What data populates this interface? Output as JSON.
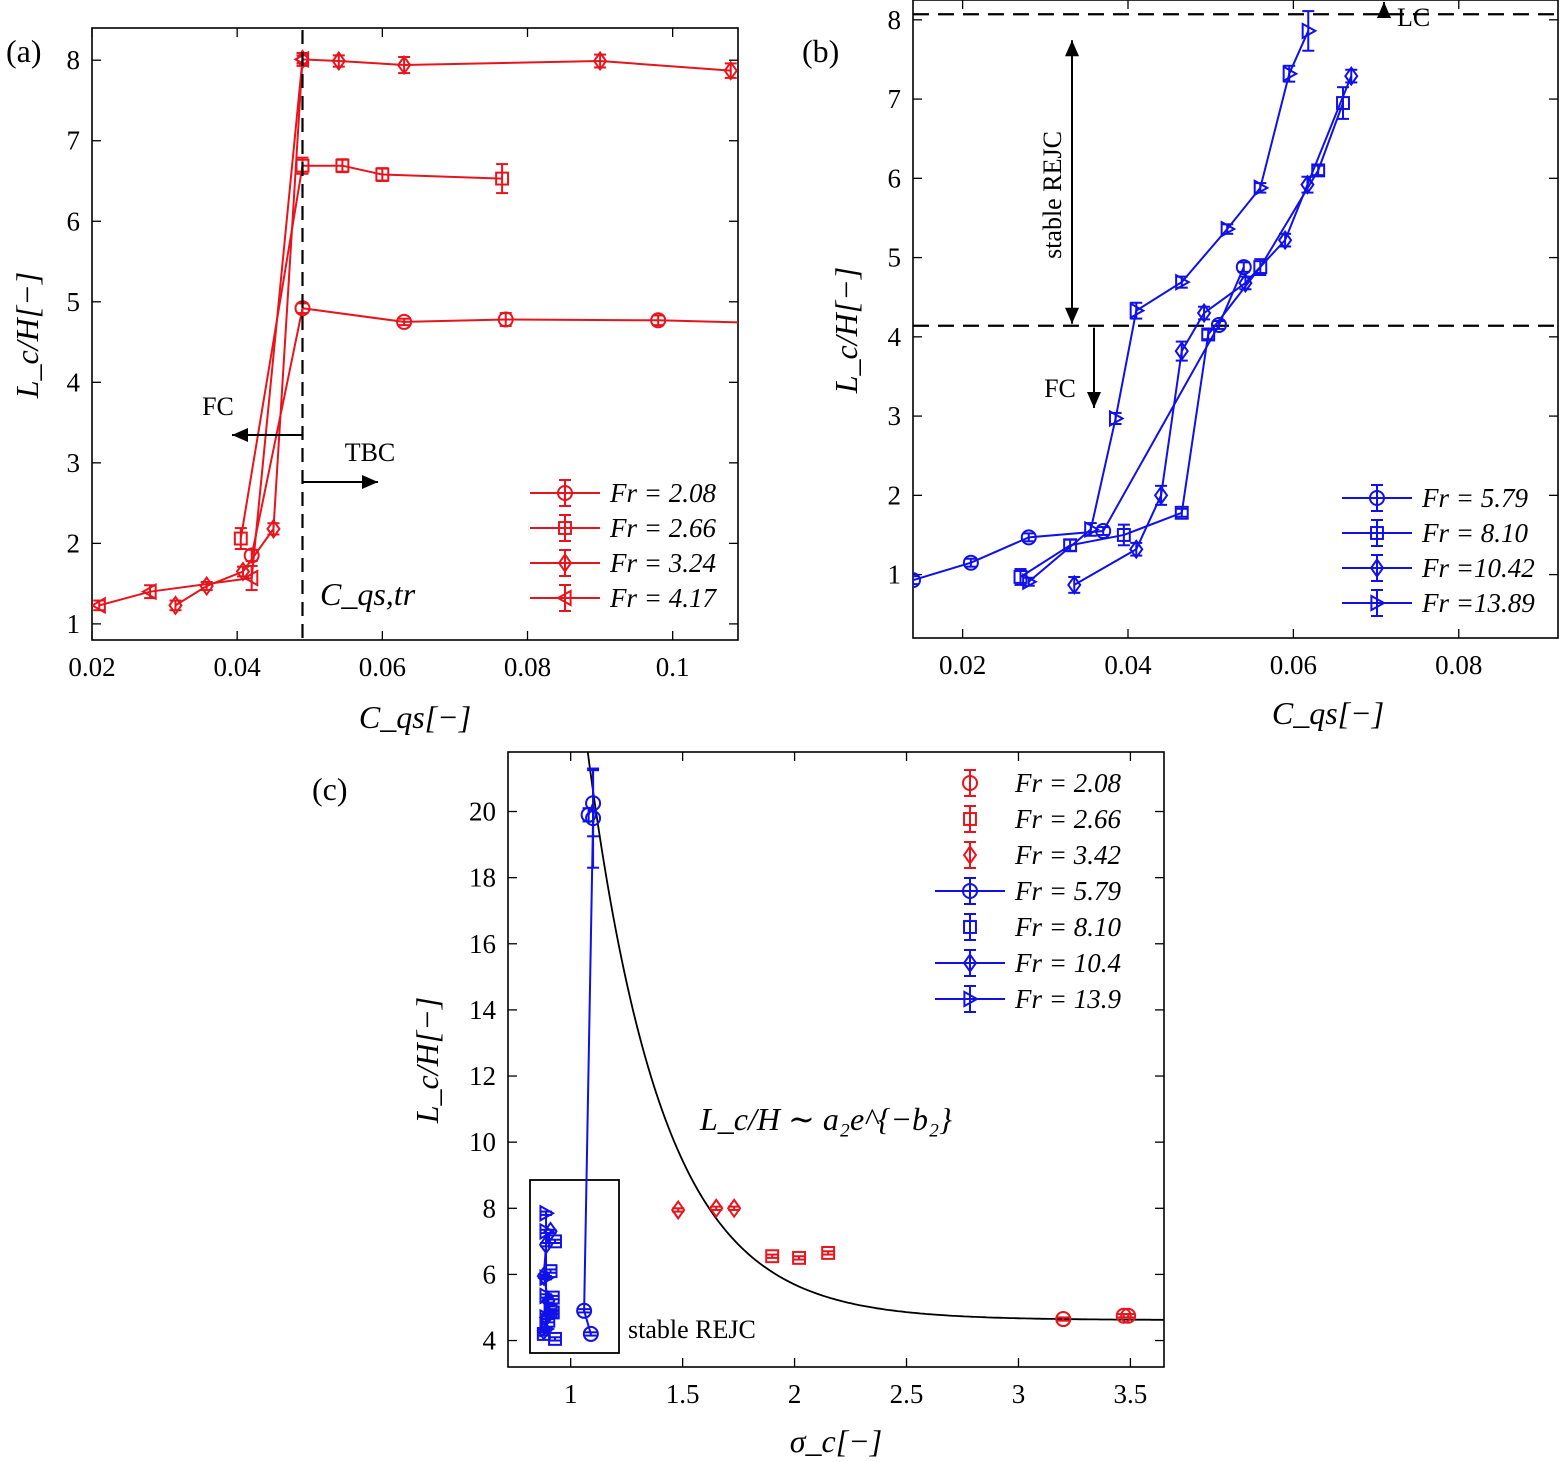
{
  "figure": "three-panel",
  "chart_data": [
    {
      "panel": "a",
      "panel_label": "(a)",
      "type": "line",
      "xlabel": "C_qs[−]",
      "ylabel": "L_c/H[−]",
      "xlim": [
        0.02,
        0.109
      ],
      "ylim": [
        0.8,
        8.4
      ],
      "xticks": [
        0.02,
        0.04,
        0.06,
        0.08,
        0.1
      ],
      "xtick_labels": [
        "0.02",
        "0.04",
        "0.06",
        "0.08",
        "0.1"
      ],
      "yticks": [
        1,
        2,
        3,
        4,
        5,
        6,
        7,
        8
      ],
      "ytick_labels": [
        "1",
        "2",
        "3",
        "4",
        "5",
        "6",
        "7",
        "8"
      ],
      "color": "#e8141c",
      "legend_position": "lower-right",
      "annotations": {
        "fc": "FC",
        "tbc": "TBC",
        "cqs_tr": "C_qs,tr",
        "threshold_x": 0.049
      },
      "series": [
        {
          "name": "Fr = 2.08",
          "marker": "circle",
          "points": [
            [
              0.042,
              1.85,
              0.07
            ],
            [
              0.049,
              4.92,
              0.06
            ],
            [
              0.063,
              4.75,
              0.04
            ],
            [
              0.077,
              4.78,
              0.08
            ],
            [
              0.098,
              4.77,
              0.06
            ],
            [
              0.111,
              4.74,
              0.04
            ]
          ]
        },
        {
          "name": "Fr = 2.66",
          "marker": "square",
          "points": [
            [
              0.0405,
              2.06,
              0.13
            ],
            [
              0.049,
              6.69,
              0.1
            ],
            [
              0.0545,
              6.69,
              0.08
            ],
            [
              0.06,
              6.58,
              0.08
            ],
            [
              0.0765,
              6.53,
              0.18
            ]
          ]
        },
        {
          "name": "Fr = 3.24",
          "marker": "diamond",
          "points": [
            [
              0.0315,
              1.23,
              0.06
            ],
            [
              0.0358,
              1.47,
              0.05
            ],
            [
              0.0408,
              1.65,
              0.06
            ],
            [
              0.045,
              2.18,
              0.07
            ],
            [
              0.049,
              8.01,
              0.08
            ],
            [
              0.054,
              7.99,
              0.07
            ],
            [
              0.063,
              7.94,
              0.1
            ],
            [
              0.09,
              7.99,
              0.08
            ],
            [
              0.108,
              7.87,
              0.09
            ]
          ]
        },
        {
          "name": "Fr = 4.17",
          "marker": "triangle-left",
          "points": [
            [
              0.021,
              1.23,
              0.06
            ],
            [
              0.028,
              1.4,
              0.08
            ],
            [
              0.042,
              1.57,
              0.15
            ],
            [
              0.049,
              8.01,
              0.05
            ]
          ]
        }
      ]
    },
    {
      "panel": "b",
      "panel_label": "(b)",
      "type": "line",
      "xlabel": "C_qs[−]",
      "ylabel": "L_c/H[−]",
      "xlim": [
        0.014,
        0.092
      ],
      "ylim": [
        0.2,
        8.25
      ],
      "xticks": [
        0.02,
        0.04,
        0.06,
        0.08
      ],
      "xtick_labels": [
        "0.02",
        "0.04",
        "0.06",
        "0.08"
      ],
      "yticks": [
        1,
        2,
        3,
        4,
        5,
        6,
        7,
        8
      ],
      "ytick_labels": [
        "1",
        "2",
        "3",
        "4",
        "5",
        "6",
        "7",
        "8"
      ],
      "color": "#1010e8",
      "legend_position": "lower-right",
      "annotations": {
        "lc": "LC",
        "fc": "FC",
        "stable": "stable REJC",
        "upper_line_y": 8.07,
        "lower_line_y": 4.14
      },
      "series": [
        {
          "name": "Fr = 5.79",
          "marker": "circle",
          "points": [
            [
              0.014,
              0.93,
              0.05
            ],
            [
              0.021,
              1.15,
              0.05
            ],
            [
              0.028,
              1.47,
              0.05
            ],
            [
              0.037,
              1.55,
              0.05
            ],
            [
              0.051,
              4.15,
              0.05
            ],
            [
              0.054,
              4.88,
              0.06
            ]
          ]
        },
        {
          "name": "Fr = 8.10",
          "marker": "square",
          "points": [
            [
              0.027,
              0.97,
              0.1
            ],
            [
              0.033,
              1.37,
              0.07
            ],
            [
              0.0395,
              1.5,
              0.13
            ],
            [
              0.0465,
              1.78,
              0.05
            ],
            [
              0.0497,
              4.03,
              0.06
            ],
            [
              0.056,
              4.88,
              0.1
            ],
            [
              0.063,
              6.1,
              0.06
            ],
            [
              0.066,
              6.95,
              0.2
            ]
          ]
        },
        {
          "name": "Fr =10.42",
          "marker": "diamond",
          "points": [
            [
              0.0335,
              0.87,
              0.1
            ],
            [
              0.041,
              1.32,
              0.08
            ],
            [
              0.044,
              2.0,
              0.12
            ],
            [
              0.0465,
              3.82,
              0.12
            ],
            [
              0.0492,
              4.3,
              0.08
            ],
            [
              0.0542,
              4.68,
              0.08
            ],
            [
              0.059,
              5.22,
              0.08
            ],
            [
              0.0617,
              5.92,
              0.1
            ],
            [
              0.067,
              7.29,
              0.08
            ]
          ]
        },
        {
          "name": "Fr =13.89",
          "marker": "triangle-right",
          "points": [
            [
              0.028,
              0.91,
              0.05
            ],
            [
              0.0355,
              1.57,
              0.08
            ],
            [
              0.0385,
              2.97,
              0.07
            ],
            [
              0.041,
              4.33,
              0.1
            ],
            [
              0.0465,
              4.69,
              0.07
            ],
            [
              0.052,
              5.36,
              0.06
            ],
            [
              0.056,
              5.88,
              0.06
            ],
            [
              0.0595,
              7.32,
              0.1
            ],
            [
              0.0618,
              7.86,
              0.25
            ]
          ]
        }
      ]
    },
    {
      "panel": "c",
      "panel_label": "(c)",
      "type": "scatter",
      "xlabel": "σ_c[−]",
      "ylabel": "L_c/H[−]",
      "xlim": [
        0.72,
        3.65
      ],
      "ylim": [
        3.2,
        21.8
      ],
      "xticks": [
        1,
        1.5,
        2,
        2.5,
        3,
        3.5
      ],
      "xtick_labels": [
        "1",
        "1.5",
        "2",
        "2.5",
        "3",
        "3.5"
      ],
      "yticks": [
        4,
        6,
        8,
        10,
        12,
        14,
        16,
        18,
        20
      ],
      "ytick_labels": [
        "4",
        "6",
        "8",
        "10",
        "12",
        "14",
        "16",
        "18",
        "20"
      ],
      "legend_position": "top-right",
      "fit_label": "L_c/H ∼ a₂e^{−b₂}",
      "fit_curve": "exponential decay",
      "stable_label": "stable REJC",
      "series": [
        {
          "name": "Fr = 2.08",
          "marker": "circle",
          "color": "#e8141c",
          "line": false,
          "points": [
            [
              3.2,
              4.65,
              0.05
            ],
            [
              3.47,
              4.75,
              0.05
            ],
            [
              3.49,
              4.75,
              0.05
            ]
          ]
        },
        {
          "name": "Fr = 2.66",
          "marker": "square",
          "color": "#e8141c",
          "line": false,
          "points": [
            [
              1.9,
              6.55,
              0.05
            ],
            [
              2.02,
              6.5,
              0.05
            ],
            [
              2.15,
              6.65,
              0.05
            ]
          ]
        },
        {
          "name": "Fr = 3.42",
          "marker": "diamond",
          "color": "#e8141c",
          "line": false,
          "points": [
            [
              1.48,
              7.95,
              0.05
            ],
            [
              1.65,
              8.0,
              0.05
            ],
            [
              1.73,
              8.0,
              0.05
            ]
          ]
        },
        {
          "name": "Fr = 5.79",
          "marker": "circle",
          "color": "#1010e8",
          "line": true,
          "points": [
            [
              1.08,
              19.9,
              0.2
            ],
            [
              1.1,
              20.25,
              1.0
            ],
            [
              1.1,
              19.8,
              1.5
            ],
            [
              1.06,
              4.9,
              0.05
            ],
            [
              1.09,
              4.2,
              0.05
            ]
          ]
        },
        {
          "name": "Fr = 8.10",
          "marker": "square",
          "color": "#1010e8",
          "line": false,
          "points": [
            [
              0.88,
              4.2,
              0.05
            ],
            [
              0.9,
              4.6,
              0.05
            ],
            [
              0.91,
              4.9,
              0.05
            ],
            [
              0.92,
              5.3,
              0.05
            ],
            [
              0.91,
              6.1,
              0.05
            ],
            [
              0.93,
              7.0,
              0.05
            ],
            [
              0.93,
              4.05,
              0.05
            ],
            [
              0.92,
              4.85,
              0.05
            ]
          ]
        },
        {
          "name": "Fr = 10.4",
          "marker": "diamond",
          "color": "#1010e8",
          "line": true,
          "points": [
            [
              0.88,
              4.3,
              0.05
            ],
            [
              0.89,
              4.7,
              0.05
            ],
            [
              0.9,
              5.2,
              0.05
            ],
            [
              0.88,
              5.95,
              0.05
            ],
            [
              0.89,
              6.9,
              0.05
            ],
            [
              0.91,
              7.3,
              0.05
            ]
          ]
        },
        {
          "name": "Fr = 13.9",
          "marker": "triangle-right",
          "color": "#1010e8",
          "line": true,
          "points": [
            [
              0.89,
              4.35,
              0.05
            ],
            [
              0.89,
              4.7,
              0.05
            ],
            [
              0.89,
              5.35,
              0.05
            ],
            [
              0.89,
              5.9,
              0.05
            ],
            [
              0.89,
              7.3,
              0.05
            ],
            [
              0.89,
              7.85,
              0.05
            ]
          ]
        }
      ]
    }
  ]
}
